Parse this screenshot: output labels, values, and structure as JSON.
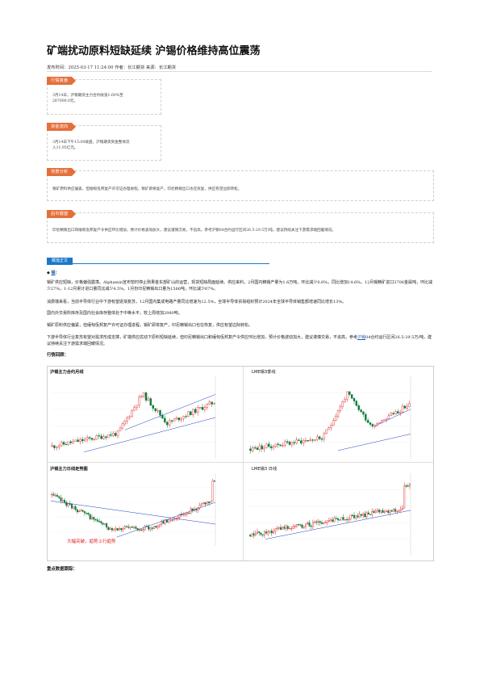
{
  "article": {
    "title": "矿端扰动原料短缺延续 沪锡价格维持高位震荡",
    "meta": "发布时间：2025-03-17 11:24:00 作者：长江期货 来源：长江期货"
  },
  "boxes": [
    {
      "tag": "行情复盘",
      "text": "3月14日，沪锡期货主力合约收涨1.60%至287000.0元。"
    },
    {
      "tag": "资金流向",
      "text": "3月14日下午15:00收盘，沪锡期货资金整体流入11.95亿元。"
    },
    {
      "tag": "背景分析",
      "text": "锡矿原料供应偏紧，但缅甸佤邦复产许可证办理进程，锡矿即将复产，印尼精锡出口也在恢复，供应有望边际转松。"
    },
    {
      "tag": "后市展望",
      "text": "印尼精锡出口和缅甸佤邦复产令供应环比增加，预计价格波动加大，建议谨慎交易，不追高，参考沪锡04合约运行区间26.5-29.5万/吨，建议持续关注下游需求端回暖情况。"
    }
  ],
  "body": {
    "section_tag": "赋值正文",
    "bullet_prefix": "◆",
    "bullet_link": "锡",
    "bullet_suffix": "：",
    "paragraphs": [
      "锡矿供应短缺，价格偏强震荡。Alphamin宣布暂时停止刚果金东部矿山的运营，现货短缺局面延续。供应来料，2月国内精锡产量为1.6万吨，环比减少0.6%，同比增加14.6%。12月锡精矿进口3706金属吨，环比减少27%，1-12月累计进口量同比减少4.5%。1月份印尼精锡出口量为1566吨，环比减少67%。",
      "消费端来看，当前半导体行业中下游有望逐渐复苏，12月国内集成电路产量同比增速为12.5%，全球半导体贸易组织预计2024年全球半导体销售额增速同比增长13%。",
      "国内外交易所库存及国内社会库存整体处于中等水平，较上周增加2980吨。",
      "锡矿原料供应偏紧，但缅甸佤邦复产许可证办理进程，锡矿即将复产，印尼精锡出口也在恢复，供应有望边际转松。"
    ],
    "last_para_before": "下游半导体行业复苏有望对需求形成支撑，矿端供应扰动下原料短缺延续，但印尼精锡出口和缅甸佤邦复产令供应环比增加，预计价格波动加大，建议谨慎交易，不追高，参考",
    "last_para_link": "沪锡",
    "last_para_after": "04合约运行区间26.5-29.5万/吨，建议持续关注下游需求端回暖情况。",
    "chart_heading": "行情回顾：",
    "footer_heading": "重点数据跟踪："
  },
  "charts": {
    "panel1_title": "沪锡主力合约月线",
    "panel2_title": "LME锡3季线",
    "panel3_title": "沪锡主力日线走势图",
    "panel4_title": "LME锡3 日线",
    "panel3_note": "大幅突破，趋势上行趋势",
    "colors": {
      "up": "#e02020",
      "down": "#0a7d3a",
      "trend": "#1f3fbf"
    }
  }
}
